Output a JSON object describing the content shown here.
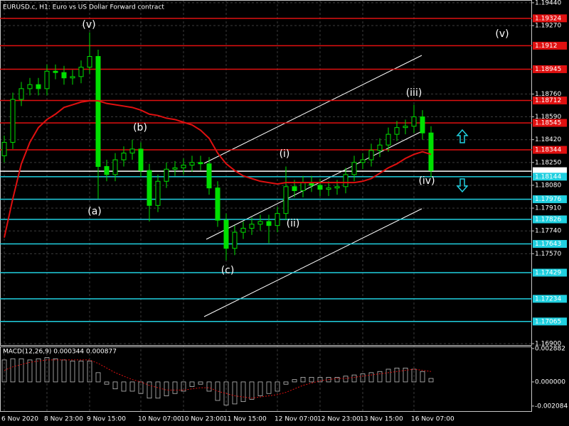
{
  "chart_data": [
    {
      "type": "candlestick",
      "title": "EURUSD.c, H1:  Euro vs US Dollar Forward contract",
      "categories": [
        "6 Nov 2020",
        null,
        null,
        null,
        null,
        "8 Nov 23:00",
        null,
        null,
        null,
        null,
        "9 Nov 15:00",
        null,
        null,
        null,
        null,
        null,
        "10 Nov 07:00",
        null,
        null,
        null,
        null,
        "10 Nov 23:00",
        null,
        null,
        null,
        null,
        "11 Nov 15:00",
        null,
        null,
        null,
        null,
        null,
        "12 Nov 07:00",
        null,
        null,
        null,
        null,
        "12 Nov 23:00",
        null,
        null,
        null,
        null,
        "13 Nov 15:00",
        null,
        null,
        null,
        null,
        null,
        "16 Nov 07:00",
        null,
        null
      ],
      "color": "#00e000",
      "open": [
        1.183,
        1.184,
        1.1872,
        1.188,
        1.1883,
        1.188,
        1.1893,
        1.1892,
        1.1888,
        1.1889,
        1.1896,
        1.1904,
        1.1822,
        1.1816,
        1.1827,
        1.1832,
        1.1835,
        1.1819,
        1.1793,
        1.1811,
        1.182,
        1.1821,
        1.1823,
        1.1825,
        1.1824,
        1.1806,
        1.1782,
        1.1761,
        1.1773,
        1.1776,
        1.1779,
        1.1781,
        1.1778,
        1.1787,
        1.1807,
        1.1804,
        1.181,
        1.1808,
        1.1805,
        1.1806,
        1.1807,
        1.1816,
        1.1825,
        1.1827,
        1.1834,
        1.1838,
        1.1846,
        1.1851,
        1.1852,
        1.1859,
        1.1847
      ],
      "high": [
        1.1845,
        1.1877,
        1.1885,
        1.1888,
        1.1888,
        1.1898,
        1.1898,
        1.1897,
        1.1894,
        1.1901,
        1.1922,
        1.1909,
        1.1827,
        1.1832,
        1.1837,
        1.1842,
        1.184,
        1.1824,
        1.1816,
        1.1825,
        1.1826,
        1.1828,
        1.183,
        1.183,
        1.1829,
        1.1811,
        1.1787,
        1.1778,
        1.1781,
        1.1784,
        1.1786,
        1.1786,
        1.1792,
        1.1822,
        1.1812,
        1.1815,
        1.1815,
        1.1813,
        1.1811,
        1.1812,
        1.1821,
        1.183,
        1.1832,
        1.1839,
        1.1843,
        1.1851,
        1.1856,
        1.1857,
        1.1868,
        1.1864,
        1.1852
      ],
      "low": [
        1.1825,
        1.1835,
        1.1867,
        1.1875,
        1.1875,
        1.1875,
        1.1887,
        1.1883,
        1.1883,
        1.1884,
        1.1891,
        1.1798,
        1.1811,
        1.1811,
        1.1822,
        1.1827,
        1.1814,
        1.1781,
        1.1788,
        1.1806,
        1.1815,
        1.1816,
        1.1818,
        1.1819,
        1.1801,
        1.1777,
        1.1752,
        1.1756,
        1.1768,
        1.1771,
        1.1774,
        1.1765,
        1.1773,
        1.1782,
        1.1799,
        1.1799,
        1.1803,
        1.18,
        1.18,
        1.1801,
        1.1802,
        1.1811,
        1.182,
        1.1822,
        1.1829,
        1.1833,
        1.1841,
        1.1846,
        1.1847,
        1.1842,
        1.1814
      ],
      "close": [
        1.184,
        1.1872,
        1.188,
        1.1883,
        1.188,
        1.1893,
        1.1892,
        1.1888,
        1.1889,
        1.1896,
        1.1904,
        1.1822,
        1.1816,
        1.1827,
        1.1832,
        1.1835,
        1.1819,
        1.1793,
        1.1811,
        1.182,
        1.1821,
        1.1823,
        1.1825,
        1.1824,
        1.1806,
        1.1782,
        1.1761,
        1.1773,
        1.1776,
        1.1779,
        1.1781,
        1.1778,
        1.1787,
        1.1807,
        1.1804,
        1.181,
        1.1808,
        1.1805,
        1.1806,
        1.1807,
        1.1816,
        1.1825,
        1.1827,
        1.1834,
        1.1838,
        1.1846,
        1.1851,
        1.1852,
        1.1859,
        1.1847,
        1.1819
      ],
      "moving_average": {
        "color": "#e01010",
        "values": [
          1.1769,
          1.1798,
          1.1824,
          1.184,
          1.1851,
          1.1857,
          1.1861,
          1.1866,
          1.1868,
          1.187,
          1.1871,
          1.1871,
          1.1869,
          1.1868,
          1.1867,
          1.1866,
          1.1864,
          1.1861,
          1.186,
          1.1858,
          1.1857,
          1.1855,
          1.1853,
          1.1849,
          1.1843,
          1.1832,
          1.1824,
          1.1819,
          1.1815,
          1.1813,
          1.1811,
          1.181,
          1.1809,
          1.181,
          1.181,
          1.181,
          1.181,
          1.181,
          1.181,
          1.181,
          1.181,
          1.181,
          1.1811,
          1.1813,
          1.1817,
          1.1821,
          1.1824,
          1.1828,
          1.1831,
          1.1833,
          1.1831
        ]
      },
      "ylim": [
        1.169,
        1.1945
      ],
      "yticks": [
        {
          "value": 1.1944,
          "label": "1.19440"
        },
        {
          "value": 1.1927,
          "label": "1.19270"
        },
        {
          "value": 1.1876,
          "label": "1.18760"
        },
        {
          "value": 1.1859,
          "label": "1.18590"
        },
        {
          "value": 1.1842,
          "label": "1.18420"
        },
        {
          "value": 1.1825,
          "label": "1.18250"
        },
        {
          "value": 1.1808,
          "label": "1.18080"
        },
        {
          "value": 1.1791,
          "label": "1.17910"
        },
        {
          "value": 1.1774,
          "label": "1.17740"
        },
        {
          "value": 1.1757,
          "label": "1.17570"
        },
        {
          "value": 1.169,
          "label": "1.16900"
        }
      ],
      "grid": true,
      "levels": [
        {
          "value": 1.19324,
          "color": "#e01010"
        },
        {
          "value": 1.1912,
          "color": "#e01010"
        },
        {
          "value": 1.18945,
          "color": "#e01010"
        },
        {
          "value": 1.18712,
          "color": "#e01010"
        },
        {
          "value": 1.18545,
          "color": "#e01010"
        },
        {
          "value": 1.18344,
          "color": "#e01010"
        },
        {
          "value": 1.18185,
          "color": "#ffffff"
        },
        {
          "value": 1.18144,
          "color": "#20d0e0"
        },
        {
          "value": 1.17976,
          "color": "#20d0e0"
        },
        {
          "value": 1.17826,
          "color": "#20d0e0"
        },
        {
          "value": 1.17643,
          "color": "#20d0e0"
        },
        {
          "value": 1.17429,
          "color": "#20d0e0"
        },
        {
          "value": 1.17234,
          "color": "#20d0e0"
        },
        {
          "value": 1.17065,
          "color": "#20d0e0"
        }
      ],
      "annotations": [
        {
          "text": "(v)",
          "color": "#ffffff"
        },
        {
          "text": "(b)",
          "color": "#e8d400"
        },
        {
          "text": "(a)",
          "color": "#e8d400"
        },
        {
          "text": "(c)",
          "color": "#e8d400"
        },
        {
          "text": "(i)",
          "color": "#ffffff"
        },
        {
          "text": "(ii)",
          "color": "#ffffff"
        },
        {
          "text": "(iii)",
          "color": "#ffffff"
        },
        {
          "text": "(iv)",
          "color": "#ffffff"
        },
        {
          "text": "(v)",
          "color": "#ffffff"
        }
      ]
    },
    {
      "type": "macd",
      "title": "MACD(12,26,9) 0.000344 0.000877",
      "color": "#c0c0c0",
      "values": [
        0.0019,
        0.002,
        0.002,
        0.0019,
        0.002,
        0.0021,
        0.002,
        0.0019,
        0.0018,
        0.0018,
        0.0018,
        0.0008,
        -0.0002,
        -0.0006,
        -0.0008,
        -0.0008,
        -0.001,
        -0.0014,
        -0.0014,
        -0.0012,
        -0.001,
        -0.0008,
        -0.0004,
        -0.0002,
        -0.0008,
        -0.0016,
        -0.002,
        -0.0019,
        -0.0017,
        -0.0015,
        -0.0012,
        -0.001,
        -0.0008,
        -0.0002,
        0.0002,
        0.0004,
        0.0004,
        0.0004,
        0.0004,
        0.0004,
        0.0005,
        0.0006,
        0.0007,
        0.0008,
        0.0009,
        0.0011,
        0.0012,
        0.0012,
        0.0011,
        0.0009,
        0.0003
      ],
      "signal": {
        "color": "#e01010",
        "values": [
          0.001,
          0.0013,
          0.0015,
          0.0017,
          0.0018,
          0.0019,
          0.0019,
          0.0019,
          0.0019,
          0.0019,
          0.0019,
          0.0016,
          0.0012,
          0.0008,
          0.0005,
          0.0002,
          0.0,
          -0.0003,
          -0.0005,
          -0.0007,
          -0.0007,
          -0.0007,
          -0.0006,
          -0.0005,
          -0.0005,
          -0.0008,
          -0.001,
          -0.0012,
          -0.0013,
          -0.0014,
          -0.0013,
          -0.0012,
          -0.0011,
          -0.0009,
          -0.0006,
          -0.0003,
          -0.0001,
          0.0001,
          0.0002,
          0.0003,
          0.0003,
          0.0004,
          0.0005,
          0.0006,
          0.0007,
          0.0008,
          0.0009,
          0.001,
          0.0011,
          0.001,
          0.0009
        ]
      },
      "ylim": [
        -0.00258,
        0.00306
      ],
      "yticks": [
        0.002882,
        {
          "value": 0,
          "label": "0.000000"
        },
        -0.002084
      ]
    }
  ]
}
